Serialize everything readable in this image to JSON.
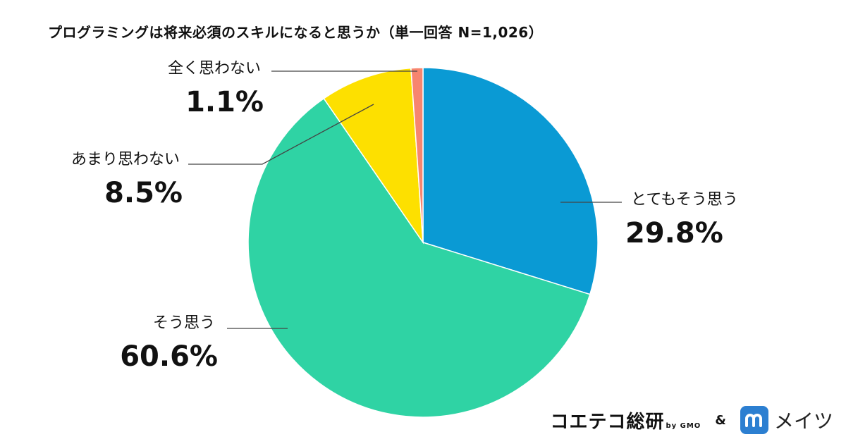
{
  "title": "プログラミングは将来必須のスキルになると思うか（単一回答 N=1,026）",
  "chart_data": {
    "type": "pie",
    "categories": [
      "とてもそう思う",
      "そう思う",
      "あまり思わない",
      "全く思わない"
    ],
    "values": [
      29.8,
      60.6,
      8.5,
      1.1
    ],
    "value_labels": [
      "29.8%",
      "60.6%",
      "8.5%",
      "1.1%"
    ],
    "colors": [
      "#0a9ad4",
      "#2fd3a4",
      "#fde000",
      "#f7856f"
    ],
    "start": "12 o'clock",
    "direction": "clockwise"
  },
  "footer": {
    "brand1": "コエテコ総研",
    "brand1_by": "by GMO",
    "amp": "&",
    "brand2_icon": "m-logo-icon",
    "brand2": "メイツ"
  }
}
